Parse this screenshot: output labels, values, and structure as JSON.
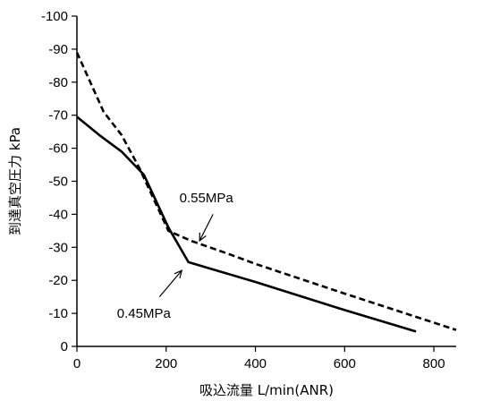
{
  "chart_data": {
    "type": "line",
    "title": "",
    "xlabel": "吸込流量 L/min(ANR)",
    "ylabel": "到達真空圧力 kPa",
    "xlim": [
      0,
      850
    ],
    "ylim": [
      0,
      -100
    ],
    "x_ticks": [
      "0",
      "200",
      "400",
      "600",
      "800"
    ],
    "y_ticks": [
      "0",
      "-10",
      "-20",
      "-30",
      "-40",
      "-50",
      "-60",
      "-70",
      "-80",
      "-90",
      "-100"
    ],
    "grid": false,
    "series": [
      {
        "name": "0.45MPa",
        "style": "solid",
        "color": "#000000",
        "points": [
          [
            0,
            -69.5
          ],
          [
            50,
            -64
          ],
          [
            100,
            -59
          ],
          [
            150,
            -52
          ],
          [
            205,
            -36
          ],
          [
            250,
            -25.5
          ],
          [
            400,
            -19.5
          ],
          [
            600,
            -11
          ],
          [
            760,
            -4.5
          ]
        ]
      },
      {
        "name": "0.55MPa",
        "style": "dashed",
        "color": "#000000",
        "points": [
          [
            0,
            -89
          ],
          [
            60,
            -71
          ],
          [
            100,
            -64
          ],
          [
            140,
            -54
          ],
          [
            205,
            -35
          ],
          [
            255,
            -32
          ],
          [
            340,
            -28
          ],
          [
            400,
            -25
          ],
          [
            600,
            -16
          ],
          [
            850,
            -5
          ]
        ]
      }
    ],
    "annotations": [
      {
        "text": "0.55MPa",
        "text_pos": [
          290,
          -45
        ],
        "arrow_from": [
          305,
          -40
        ],
        "arrow_to": [
          275,
          -32
        ]
      },
      {
        "text": "0.45MPa",
        "text_pos": [
          150,
          -10
        ],
        "arrow_from": [
          185,
          -15
        ],
        "arrow_to": [
          235,
          -23
        ]
      }
    ]
  }
}
